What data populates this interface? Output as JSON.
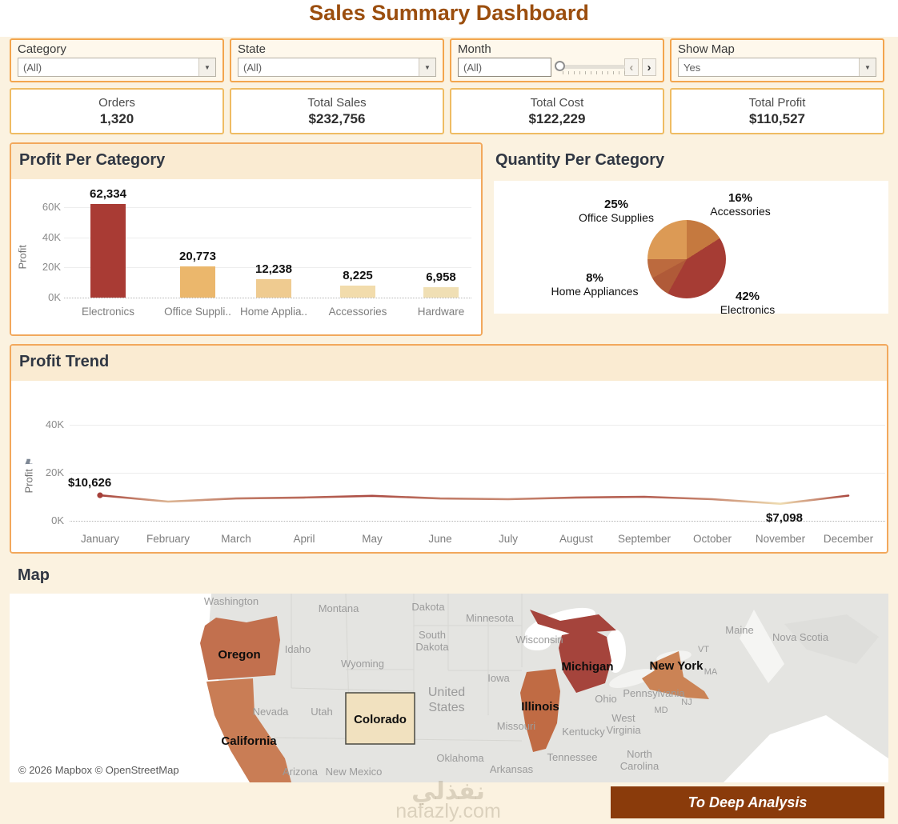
{
  "title": "Sales Summary Dashboard",
  "filters": {
    "category": {
      "label": "Category",
      "value": "(All)"
    },
    "state": {
      "label": "State",
      "value": "(All)"
    },
    "month": {
      "label": "Month",
      "value": "(All)"
    },
    "show_map": {
      "label": "Show Map",
      "value": "Yes"
    }
  },
  "kpis": [
    {
      "label": "Orders",
      "value": "1,320"
    },
    {
      "label": "Total Sales",
      "value": "$232,756"
    },
    {
      "label": "Total Cost",
      "value": "$122,229"
    },
    {
      "label": "Total Profit",
      "value": "$110,527"
    }
  ],
  "chart_data": [
    {
      "type": "bar",
      "title": "Profit Per Category",
      "ylabel": "Profit",
      "yticks": [
        "0K",
        "20K",
        "40K",
        "60K"
      ],
      "ylim": [
        0,
        65000
      ],
      "categories": [
        "Electronics",
        "Office Suppli..",
        "Home Applia..",
        "Accessories",
        "Hardware"
      ],
      "values": [
        62334,
        20773,
        12238,
        8225,
        6958
      ],
      "value_labels": [
        "62,334",
        "20,773",
        "12,238",
        "8,225",
        "6,958"
      ],
      "bar_colors": [
        "#A93B34",
        "#EBB76C",
        "#EFCB90",
        "#F2DCAC",
        "#F0DFB4"
      ]
    },
    {
      "type": "pie",
      "title": "Quantity Per Category",
      "slices": [
        {
          "label": "Accessories",
          "pct": 16,
          "color": "#C5793F",
          "labeled": true
        },
        {
          "label": "Electronics",
          "pct": 42,
          "color": "#A63C34",
          "labeled": true
        },
        {
          "label": "Hardware",
          "pct": 9,
          "color": "#B05A38",
          "labeled": false
        },
        {
          "label": "Home Appliances",
          "pct": 8,
          "color": "#BC6A3E",
          "labeled": true
        },
        {
          "label": "Office Supplies",
          "pct": 25,
          "color": "#DC9A55",
          "labeled": true
        }
      ]
    },
    {
      "type": "line",
      "title": "Profit Trend",
      "ylabel": "Profit",
      "yticks": [
        "0K",
        "20K",
        "40K"
      ],
      "ylim": [
        0,
        53000
      ],
      "x": [
        "January",
        "February",
        "March",
        "April",
        "May",
        "June",
        "July",
        "August",
        "September",
        "October",
        "November",
        "December"
      ],
      "values": [
        10626,
        8000,
        9300,
        9700,
        10400,
        9300,
        9000,
        9700,
        10000,
        9000,
        7098,
        10500
      ],
      "annotations": [
        {
          "x": "January",
          "text": "$10,626"
        },
        {
          "x": "November",
          "text": "$7,098"
        }
      ],
      "color_scale": {
        "low": "#EFDDB2",
        "high": "#A6403A"
      }
    }
  ],
  "map": {
    "section_title": "Map",
    "attribution": "© 2026 Mapbox © OpenStreetMap",
    "highlighted_states": [
      {
        "name": "Oregon",
        "color": "#C2704E"
      },
      {
        "name": "California",
        "color": "#C97D55"
      },
      {
        "name": "Colorado",
        "color": "#F1E1BF"
      },
      {
        "name": "Illinois",
        "color": "#C06B44"
      },
      {
        "name": "Michigan",
        "color": "#A5443C"
      },
      {
        "name": "New York",
        "color": "#CB8355"
      }
    ],
    "background_labels": [
      "Washington",
      "Montana",
      "Dakota",
      "Minnesota",
      "South|Dakota",
      "Wisconsin",
      "Idaho",
      "Wyoming",
      "Iowa",
      "Nevada",
      "Utah",
      "United|States",
      "Missouri",
      "Ohio",
      "Kentucky",
      "Tennessee",
      "Oklahoma",
      "Arkansas",
      "New Mexico",
      "Arizona",
      "Pennsylvania",
      "Maine",
      "Nova Scotia",
      "VT",
      "MA",
      "NJ",
      "MD",
      "West|Virginia",
      "North|Carolina"
    ]
  },
  "footer": {
    "button_label": "To Deep Analysis",
    "watermark_logo": "نفذلي",
    "watermark_domain": "nafazly.com"
  }
}
